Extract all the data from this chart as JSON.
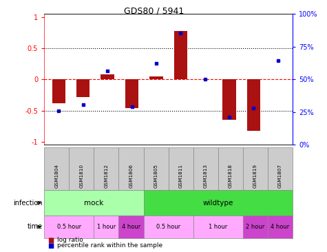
{
  "title": "GDS80 / 5941",
  "samples": [
    "GSM1804",
    "GSM1810",
    "GSM1812",
    "GSM1806",
    "GSM1805",
    "GSM1811",
    "GSM1813",
    "GSM1818",
    "GSM1819",
    "GSM1807"
  ],
  "log_ratio": [
    -0.38,
    -0.28,
    0.08,
    -0.46,
    0.05,
    0.78,
    0.0,
    -0.65,
    -0.82,
    0.0
  ],
  "percentile": [
    25,
    30,
    57,
    28,
    63,
    87,
    50,
    20,
    27,
    65
  ],
  "infection_groups": [
    {
      "label": "mock",
      "start": 0,
      "end": 4,
      "color": "#aaffaa"
    },
    {
      "label": "wildtype",
      "start": 4,
      "end": 10,
      "color": "#44dd44"
    }
  ],
  "time_groups": [
    {
      "label": "0.5 hour",
      "start": 0,
      "end": 2,
      "color": "#ffaaff"
    },
    {
      "label": "1 hour",
      "start": 2,
      "end": 3,
      "color": "#ffaaff"
    },
    {
      "label": "4 hour",
      "start": 3,
      "end": 4,
      "color": "#cc44cc"
    },
    {
      "label": "0.5 hour",
      "start": 4,
      "end": 6,
      "color": "#ffaaff"
    },
    {
      "label": "1 hour",
      "start": 6,
      "end": 8,
      "color": "#ffaaff"
    },
    {
      "label": "2 hour",
      "start": 8,
      "end": 9,
      "color": "#cc44cc"
    },
    {
      "label": "4 hour",
      "start": 9,
      "end": 10,
      "color": "#cc44cc"
    }
  ],
  "bar_color": "#aa1111",
  "dot_color": "#0000cc",
  "ylim_left": [
    -1.05,
    1.05
  ],
  "ylim_right": [
    0,
    100
  ],
  "yticks_left": [
    -1,
    -0.5,
    0,
    0.5,
    1
  ],
  "ytick_labels_left": [
    "-1",
    "-0.5",
    "0",
    "0.5",
    "1"
  ],
  "yticks_right": [
    0,
    25,
    50,
    75,
    100
  ],
  "ytick_labels_right": [
    "0%",
    "25%",
    "50%",
    "75%",
    "100%"
  ],
  "hline_vals": [
    -0.5,
    0,
    0.5
  ],
  "background_color": "#ffffff"
}
